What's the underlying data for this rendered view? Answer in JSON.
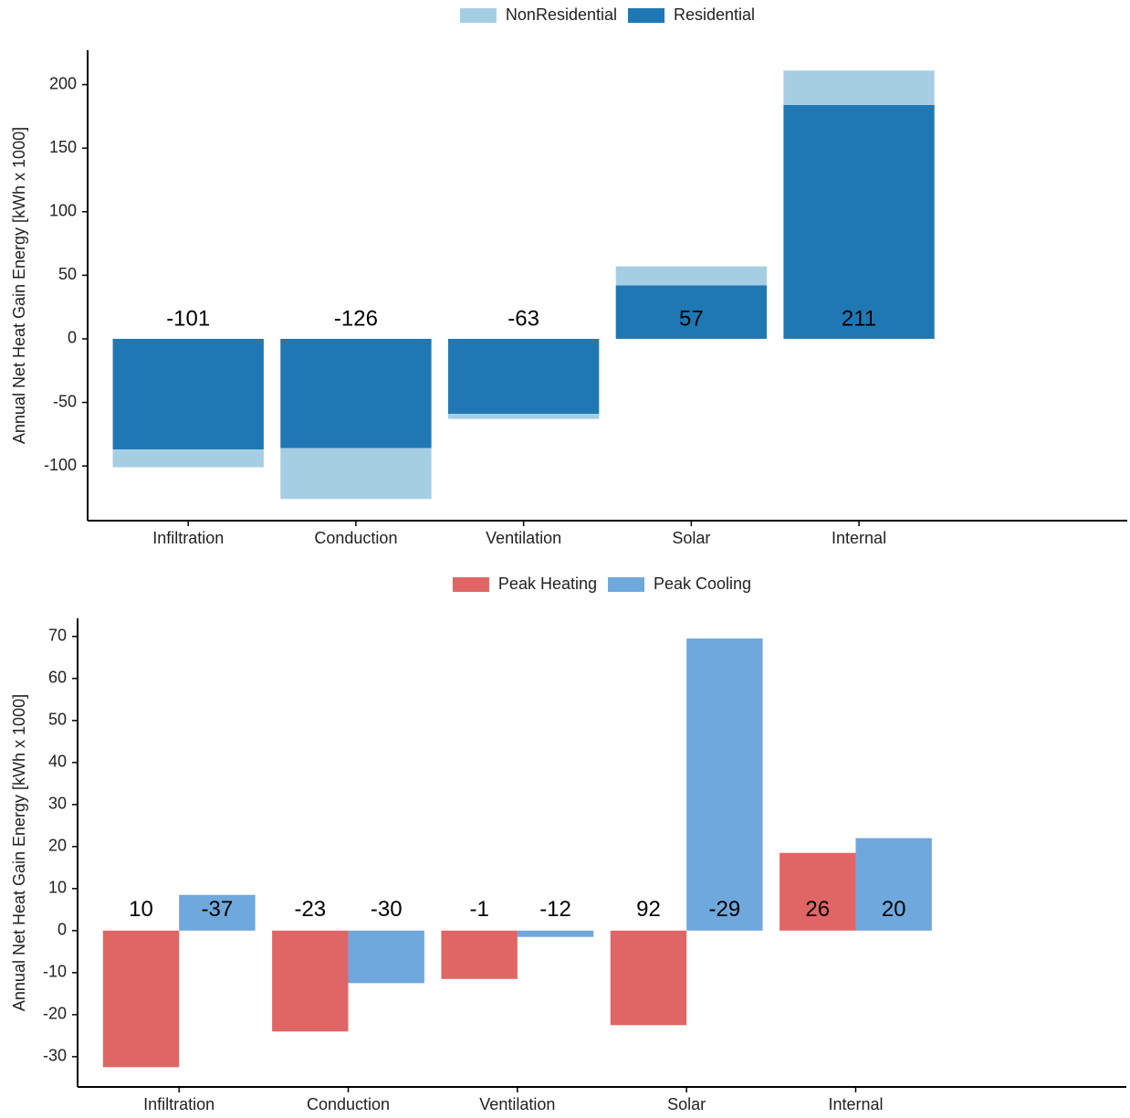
{
  "chart_data": [
    {
      "type": "stacked_bar",
      "y_label": "Annual Net Heat Gain Energy [kWh x 1000]",
      "categories": [
        "Infiltration",
        "Conduction",
        "Ventilation",
        "Solar",
        "Internal"
      ],
      "series": [
        {
          "name": "NonResidential",
          "color": "#a6cee3",
          "values": [
            -14,
            -40,
            -4,
            15,
            27
          ]
        },
        {
          "name": "Residential",
          "color": "#1f78b4",
          "values": [
            -87,
            -86,
            -59,
            42,
            184
          ]
        }
      ],
      "totals": [
        -101,
        -126,
        -63,
        57,
        211
      ],
      "ylim": [
        -143,
        227
      ],
      "yticks": [
        -100,
        -50,
        0,
        50,
        100,
        150,
        200
      ],
      "legend": "top"
    },
    {
      "type": "grouped_bar",
      "y_label": "Annual Net Heat Gain Energy [kWh x 1000]",
      "categories": [
        "Infiltration",
        "Conduction",
        "Ventilation",
        "Solar",
        "Internal"
      ],
      "series": [
        {
          "name": "Peak Heating",
          "color": "#e06666",
          "values": [
            -32.5,
            -24,
            -11.5,
            -22.5,
            18.5
          ],
          "annotations": [
            10,
            -23,
            -1,
            92,
            26
          ]
        },
        {
          "name": "Peak Cooling",
          "color": "#6fa8dc",
          "values": [
            8.5,
            -12.5,
            -1.5,
            69.5,
            22
          ],
          "annotations": [
            -37,
            -30,
            -12,
            -29,
            20
          ]
        }
      ],
      "ylim": [
        -37.2,
        74.3
      ],
      "yticks": [
        -30,
        -20,
        -10,
        0,
        10,
        20,
        30,
        40,
        50,
        60,
        70
      ],
      "legend": "top"
    }
  ]
}
